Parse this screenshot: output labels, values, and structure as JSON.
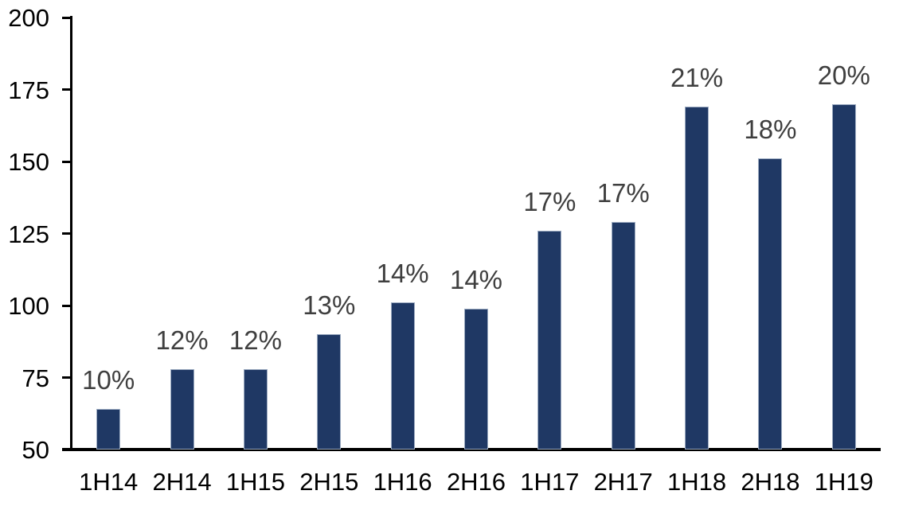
{
  "chart_data": {
    "type": "bar",
    "title": "",
    "xlabel": "",
    "ylabel": "",
    "categories": [
      "1H14",
      "2H14",
      "1H15",
      "2H15",
      "1H16",
      "2H16",
      "1H17",
      "2H17",
      "1H18",
      "2H18",
      "1H19"
    ],
    "values": [
      64,
      78,
      78,
      90,
      101,
      99,
      126,
      129,
      169,
      151,
      170
    ],
    "data_labels": [
      "10%",
      "12%",
      "12%",
      "13%",
      "14%",
      "14%",
      "17%",
      "17%",
      "21%",
      "18%",
      "20%"
    ],
    "ylim": [
      50,
      200
    ],
    "yticks": [
      50,
      75,
      100,
      125,
      150,
      175,
      200
    ],
    "grid": false,
    "legend": false,
    "colors": {
      "bar_fill": "#1F3864",
      "bar_border": "#9DACC2",
      "data_label": "#3F3F3F",
      "axis_text": "#000000",
      "axis_line": "#000000",
      "background": "#FFFFFF"
    }
  }
}
